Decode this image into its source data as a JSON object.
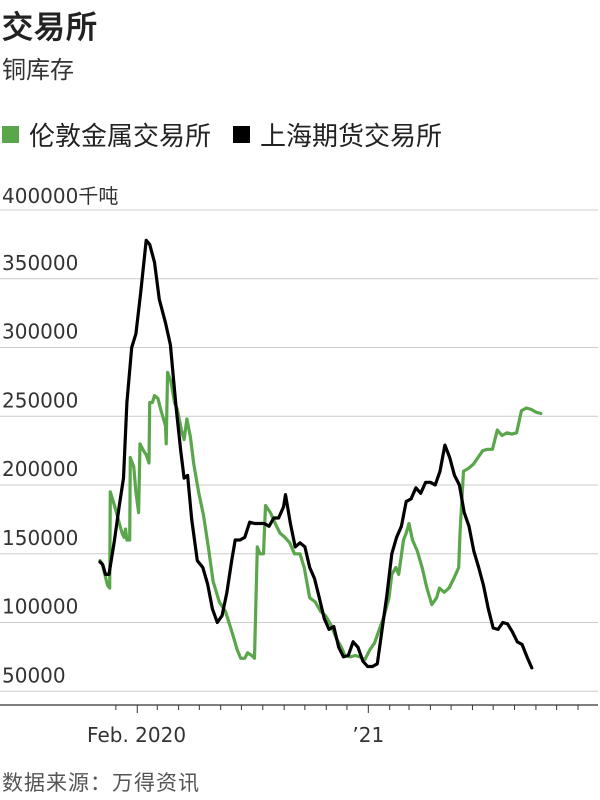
{
  "title": "交易所",
  "subtitle": "铜库存",
  "source": "数据来源：万得资讯",
  "colors": {
    "lme": "#5aa64a",
    "shfe": "#000000",
    "grid": "#cccccc",
    "axis": "#333333"
  },
  "chart_data": {
    "type": "line",
    "unit": "千吨",
    "y_ticks": [
      50000,
      100000,
      150000,
      200000,
      250000,
      300000,
      350000,
      400000
    ],
    "y_tick_labels": [
      "50000",
      "100000",
      "150000",
      "200000",
      "250000",
      "300000",
      "350000",
      "400000"
    ],
    "ylim": [
      40000,
      400000
    ],
    "xlim": [
      "2019-12-09",
      "2021-11-30"
    ],
    "x_tick_labels": [
      {
        "date": "2020-01-31",
        "label": "Feb. 2020"
      },
      {
        "date": "2021-01-01",
        "label": "’21"
      }
    ],
    "grid": true,
    "legend_position": "top-left",
    "series": [
      {
        "name": "伦敦金属交易所",
        "color": "#5aa64a",
        "points": [
          [
            "2019-12-09",
            145000
          ],
          [
            "2019-12-12",
            143000
          ],
          [
            "2019-12-16",
            135000
          ],
          [
            "2019-12-20",
            127000
          ],
          [
            "2019-12-23",
            125000
          ],
          [
            "2019-12-24",
            195000
          ],
          [
            "2019-12-30",
            185000
          ],
          [
            "2020-01-03",
            178000
          ],
          [
            "2020-01-06",
            172000
          ],
          [
            "2020-01-10",
            165000
          ],
          [
            "2020-01-13",
            162000
          ],
          [
            "2020-01-15",
            168000
          ],
          [
            "2020-01-17",
            160000
          ],
          [
            "2020-01-21",
            160000
          ],
          [
            "2020-01-22",
            220000
          ],
          [
            "2020-01-27",
            213000
          ],
          [
            "2020-01-30",
            195000
          ],
          [
            "2020-02-03",
            180000
          ],
          [
            "2020-02-05",
            230000
          ],
          [
            "2020-02-10",
            225000
          ],
          [
            "2020-02-14",
            222000
          ],
          [
            "2020-02-18",
            216000
          ],
          [
            "2020-02-19",
            260000
          ],
          [
            "2020-02-23",
            260000
          ],
          [
            "2020-02-26",
            265000
          ],
          [
            "2020-03-02",
            263000
          ],
          [
            "2020-03-06",
            255000
          ],
          [
            "2020-03-10",
            248000
          ],
          [
            "2020-03-13",
            243000
          ],
          [
            "2020-03-14",
            230000
          ],
          [
            "2020-03-16",
            282000
          ],
          [
            "2020-03-21",
            275000
          ],
          [
            "2020-03-26",
            260000
          ],
          [
            "2020-03-30",
            255000
          ],
          [
            "2020-04-05",
            240000
          ],
          [
            "2020-04-09",
            233000
          ],
          [
            "2020-04-13",
            248000
          ],
          [
            "2020-04-18",
            235000
          ],
          [
            "2020-04-23",
            215000
          ],
          [
            "2020-04-30",
            195000
          ],
          [
            "2020-05-07",
            178000
          ],
          [
            "2020-05-14",
            155000
          ],
          [
            "2020-05-21",
            130000
          ],
          [
            "2020-05-30",
            115000
          ],
          [
            "2020-06-08",
            108000
          ],
          [
            "2020-06-18",
            92000
          ],
          [
            "2020-06-25",
            80000
          ],
          [
            "2020-06-30",
            74000
          ],
          [
            "2020-07-06",
            74000
          ],
          [
            "2020-07-10",
            78000
          ],
          [
            "2020-07-16",
            76000
          ],
          [
            "2020-07-20",
            74000
          ],
          [
            "2020-07-24",
            155000
          ],
          [
            "2020-07-28",
            150000
          ],
          [
            "2020-08-02",
            150000
          ],
          [
            "2020-08-05",
            185000
          ],
          [
            "2020-08-12",
            180000
          ],
          [
            "2020-08-19",
            172000
          ],
          [
            "2020-08-26",
            165000
          ],
          [
            "2020-09-02",
            162000
          ],
          [
            "2020-09-09",
            158000
          ],
          [
            "2020-09-16",
            150000
          ],
          [
            "2020-09-24",
            150000
          ],
          [
            "2020-09-30",
            140000
          ],
          [
            "2020-10-08",
            118000
          ],
          [
            "2020-10-16",
            115000
          ],
          [
            "2020-10-24",
            108000
          ],
          [
            "2020-10-31",
            105000
          ],
          [
            "2020-11-08",
            98000
          ],
          [
            "2020-11-16",
            88000
          ],
          [
            "2020-11-23",
            82000
          ],
          [
            "2020-11-28",
            76000
          ],
          [
            "2020-12-06",
            75000
          ],
          [
            "2020-12-13",
            76000
          ],
          [
            "2020-12-20",
            75000
          ],
          [
            "2020-12-27",
            73000
          ],
          [
            "2021-01-03",
            80000
          ],
          [
            "2021-01-10",
            85000
          ],
          [
            "2021-01-17",
            95000
          ],
          [
            "2021-01-24",
            105000
          ],
          [
            "2021-01-31",
            118000
          ],
          [
            "2021-02-04",
            135000
          ],
          [
            "2021-02-10",
            140000
          ],
          [
            "2021-02-14",
            135000
          ],
          [
            "2021-02-21",
            160000
          ],
          [
            "2021-02-25",
            165000
          ],
          [
            "2021-03-01",
            172000
          ],
          [
            "2021-03-06",
            160000
          ],
          [
            "2021-03-13",
            152000
          ],
          [
            "2021-03-20",
            140000
          ],
          [
            "2021-03-27",
            125000
          ],
          [
            "2021-04-03",
            113000
          ],
          [
            "2021-04-10",
            118000
          ],
          [
            "2021-04-14",
            125000
          ],
          [
            "2021-04-21",
            122000
          ],
          [
            "2021-04-28",
            125000
          ],
          [
            "2021-05-05",
            132000
          ],
          [
            "2021-05-12",
            140000
          ],
          [
            "2021-05-14",
            165000
          ],
          [
            "2021-05-19",
            210000
          ],
          [
            "2021-05-26",
            212000
          ],
          [
            "2021-06-02",
            215000
          ],
          [
            "2021-06-09",
            220000
          ],
          [
            "2021-06-16",
            225000
          ],
          [
            "2021-06-23",
            226000
          ],
          [
            "2021-06-30",
            226000
          ],
          [
            "2021-07-07",
            240000
          ],
          [
            "2021-07-14",
            236000
          ],
          [
            "2021-07-21",
            238000
          ],
          [
            "2021-07-28",
            237000
          ],
          [
            "2021-08-04",
            238000
          ],
          [
            "2021-08-11",
            254000
          ],
          [
            "2021-08-18",
            256000
          ],
          [
            "2021-08-25",
            255000
          ],
          [
            "2021-09-01",
            253000
          ],
          [
            "2021-09-08",
            252000
          ]
        ]
      },
      {
        "name": "上海期货交易所",
        "color": "#000000",
        "points": [
          [
            "2019-12-09",
            144000
          ],
          [
            "2019-12-13",
            142000
          ],
          [
            "2019-12-17",
            135000
          ],
          [
            "2019-12-22",
            135000
          ],
          [
            "2019-12-30",
            160000
          ],
          [
            "2020-01-06",
            185000
          ],
          [
            "2020-01-12",
            205000
          ],
          [
            "2020-01-17",
            260000
          ],
          [
            "2020-01-24",
            300000
          ],
          [
            "2020-01-30",
            310000
          ],
          [
            "2020-02-06",
            340000
          ],
          [
            "2020-02-14",
            378000
          ],
          [
            "2020-02-19",
            375000
          ],
          [
            "2020-02-26",
            362000
          ],
          [
            "2020-03-04",
            335000
          ],
          [
            "2020-03-13",
            318000
          ],
          [
            "2020-03-20",
            302000
          ],
          [
            "2020-03-28",
            258000
          ],
          [
            "2020-04-04",
            225000
          ],
          [
            "2020-04-09",
            205000
          ],
          [
            "2020-04-14",
            207000
          ],
          [
            "2020-04-20",
            175000
          ],
          [
            "2020-04-28",
            145000
          ],
          [
            "2020-05-06",
            140000
          ],
          [
            "2020-05-13",
            128000
          ],
          [
            "2020-05-20",
            110000
          ],
          [
            "2020-05-27",
            100000
          ],
          [
            "2020-06-03",
            105000
          ],
          [
            "2020-06-10",
            122000
          ],
          [
            "2020-06-17",
            145000
          ],
          [
            "2020-06-22",
            160000
          ],
          [
            "2020-06-29",
            160000
          ],
          [
            "2020-07-06",
            162000
          ],
          [
            "2020-07-13",
            173000
          ],
          [
            "2020-07-20",
            172000
          ],
          [
            "2020-07-27",
            172000
          ],
          [
            "2020-08-03",
            172000
          ],
          [
            "2020-08-10",
            170000
          ],
          [
            "2020-08-17",
            176000
          ],
          [
            "2020-08-24",
            176000
          ],
          [
            "2020-08-31",
            184000
          ],
          [
            "2020-09-03",
            193000
          ],
          [
            "2020-09-10",
            172000
          ],
          [
            "2020-09-17",
            155000
          ],
          [
            "2020-09-24",
            158000
          ],
          [
            "2020-10-01",
            155000
          ],
          [
            "2020-10-08",
            140000
          ],
          [
            "2020-10-15",
            132000
          ],
          [
            "2020-10-22",
            118000
          ],
          [
            "2020-10-29",
            103000
          ],
          [
            "2020-11-05",
            95000
          ],
          [
            "2020-11-12",
            97000
          ],
          [
            "2020-11-19",
            82000
          ],
          [
            "2020-11-26",
            75000
          ],
          [
            "2020-12-03",
            76000
          ],
          [
            "2020-12-10",
            86000
          ],
          [
            "2020-12-17",
            82000
          ],
          [
            "2020-12-24",
            72000
          ],
          [
            "2020-12-31",
            68000
          ],
          [
            "2021-01-07",
            68000
          ],
          [
            "2021-01-14",
            70000
          ],
          [
            "2021-01-21",
            95000
          ],
          [
            "2021-01-28",
            120000
          ],
          [
            "2021-02-04",
            150000
          ],
          [
            "2021-02-11",
            162000
          ],
          [
            "2021-02-18",
            170000
          ],
          [
            "2021-02-25",
            188000
          ],
          [
            "2021-03-04",
            190000
          ],
          [
            "2021-03-11",
            198000
          ],
          [
            "2021-03-18",
            194000
          ],
          [
            "2021-03-25",
            202000
          ],
          [
            "2021-04-01",
            202000
          ],
          [
            "2021-04-08",
            200000
          ],
          [
            "2021-04-15",
            210000
          ],
          [
            "2021-04-22",
            229000
          ],
          [
            "2021-04-29",
            220000
          ],
          [
            "2021-05-06",
            207000
          ],
          [
            "2021-05-13",
            200000
          ],
          [
            "2021-05-20",
            180000
          ],
          [
            "2021-05-27",
            170000
          ],
          [
            "2021-06-03",
            152000
          ],
          [
            "2021-06-10",
            140000
          ],
          [
            "2021-06-17",
            127000
          ],
          [
            "2021-06-24",
            110000
          ],
          [
            "2021-07-01",
            96000
          ],
          [
            "2021-07-08",
            95000
          ],
          [
            "2021-07-15",
            100000
          ],
          [
            "2021-07-22",
            99000
          ],
          [
            "2021-07-29",
            93000
          ],
          [
            "2021-08-05",
            86000
          ],
          [
            "2021-08-12",
            84000
          ],
          [
            "2021-08-19",
            75000
          ],
          [
            "2021-08-26",
            67000
          ]
        ]
      }
    ]
  }
}
